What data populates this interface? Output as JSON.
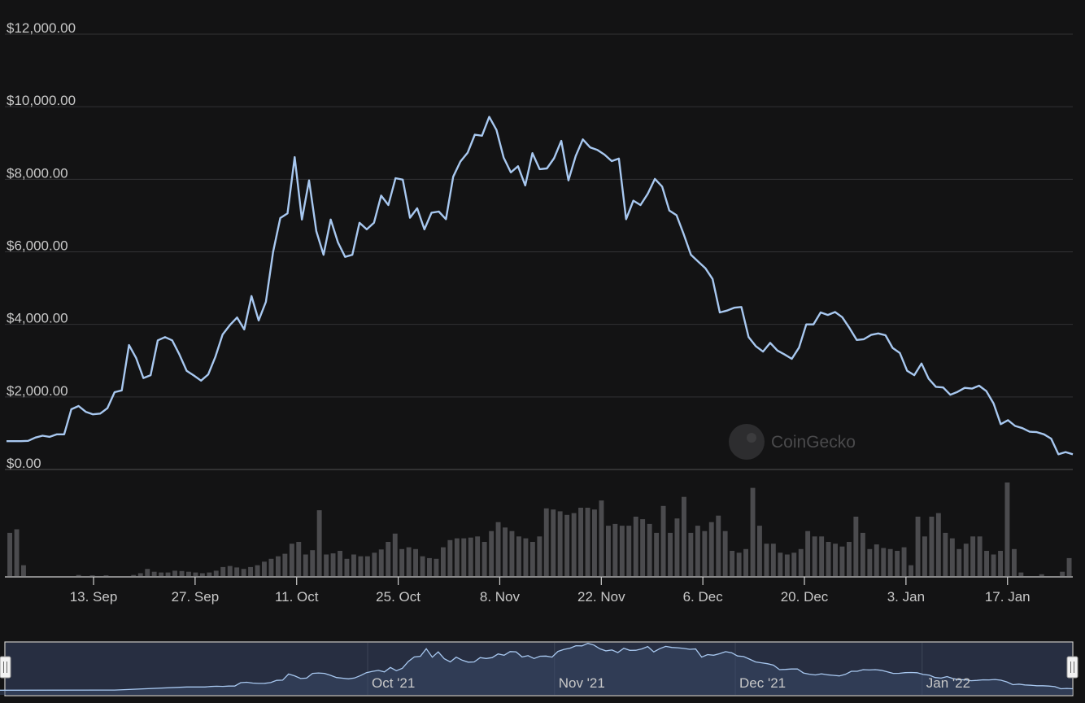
{
  "chart_data": {
    "type": "line",
    "y_ticks": [
      "$12,000.00",
      "$10,000.00",
      "$8,000.00",
      "$6,000.00",
      "$4,000.00",
      "$2,000.00",
      "$0.00"
    ],
    "y_tick_values": [
      12000,
      10000,
      8000,
      6000,
      4000,
      2000,
      0
    ],
    "ylim": [
      0,
      12000
    ],
    "x_ticks": [
      "13. Sep",
      "27. Sep",
      "11. Oct",
      "25. Oct",
      "8. Nov",
      "22. Nov",
      "6. Dec",
      "20. Dec",
      "3. Jan",
      "17. Jan"
    ],
    "x_tick_dates": [
      "2021-09-13",
      "2021-09-27",
      "2021-10-11",
      "2021-10-25",
      "2021-11-08",
      "2021-11-22",
      "2021-12-06",
      "2021-12-20",
      "2022-01-03",
      "2022-01-17"
    ],
    "x_start": "2021-09-01",
    "x_end": "2022-01-26",
    "grid": true,
    "line_color": "#a8c8f0",
    "price_series": [
      780,
      780,
      780,
      790,
      880,
      930,
      900,
      970,
      970,
      1660,
      1750,
      1590,
      1520,
      1540,
      1690,
      2130,
      2180,
      3430,
      3070,
      2520,
      2600,
      3560,
      3650,
      3560,
      3170,
      2720,
      2590,
      2450,
      2620,
      3110,
      3720,
      3980,
      4190,
      3860,
      4780,
      4110,
      4620,
      6000,
      6930,
      7060,
      8610,
      6890,
      7970,
      6570,
      5920,
      6890,
      6260,
      5860,
      5920,
      6800,
      6620,
      6800,
      7550,
      7290,
      8030,
      7990,
      6940,
      7200,
      6620,
      7080,
      7110,
      6900,
      8070,
      8490,
      8730,
      9230,
      9200,
      9720,
      9360,
      8600,
      8190,
      8360,
      7830,
      8720,
      8280,
      8300,
      8580,
      9060,
      7970,
      8640,
      9100,
      8880,
      8810,
      8680,
      8500,
      8570,
      6900,
      7410,
      7290,
      7600,
      8010,
      7800,
      7140,
      7010,
      6480,
      5920,
      5730,
      5550,
      5250,
      4330,
      4380,
      4460,
      4480,
      3650,
      3400,
      3250,
      3490,
      3280,
      3170,
      3050,
      3360,
      4000,
      4000,
      4330,
      4260,
      4340,
      4200,
      3900,
      3570,
      3590,
      3710,
      3750,
      3700,
      3350,
      3210,
      2720,
      2600,
      2920,
      2500,
      2280,
      2260,
      2060,
      2140,
      2250,
      2230,
      2310,
      2160,
      1820,
      1250,
      1360,
      1200,
      1140,
      1040,
      1030,
      970,
      850,
      420,
      480,
      420
    ],
    "volume_series": [
      120,
      130,
      30,
      0,
      0,
      0,
      0,
      0,
      0,
      0,
      3,
      0,
      2,
      0,
      2,
      0,
      0,
      0,
      3,
      8,
      20,
      12,
      10,
      10,
      15,
      14,
      12,
      10,
      8,
      10,
      15,
      25,
      28,
      24,
      20,
      25,
      30,
      40,
      48,
      55,
      62,
      90,
      95,
      60,
      72,
      183,
      60,
      63,
      70,
      48,
      60,
      55,
      55,
      65,
      74,
      95,
      118,
      75,
      80,
      75,
      55,
      50,
      48,
      80,
      100,
      105,
      105,
      107,
      110,
      95,
      125,
      150,
      135,
      125,
      110,
      105,
      95,
      110,
      188,
      185,
      180,
      170,
      175,
      190,
      190,
      185,
      210,
      140,
      145,
      140,
      140,
      165,
      158,
      145,
      120,
      195,
      120,
      160,
      220,
      120,
      140,
      125,
      150,
      168,
      125,
      70,
      65,
      75,
      245,
      140,
      90,
      90,
      65,
      60,
      65,
      75,
      125,
      110,
      110,
      95,
      90,
      82,
      95,
      165,
      120,
      75,
      88,
      78,
      75,
      70,
      80,
      30,
      165,
      110,
      165,
      175,
      120,
      105,
      75,
      90,
      110,
      110,
      70,
      60,
      70,
      260,
      75,
      10,
      0,
      0,
      5,
      0,
      0,
      12,
      50
    ],
    "navigator_labels": [
      "Oct '21",
      "Nov '21",
      "Dec '21",
      "Jan '22"
    ],
    "navigator_label_dates": [
      "2021-10-01",
      "2021-11-01",
      "2021-12-01",
      "2022-01-01"
    ],
    "navigator_start": "2021-08-01",
    "navigator_end": "2022-01-26",
    "watermark": "CoinGecko"
  }
}
